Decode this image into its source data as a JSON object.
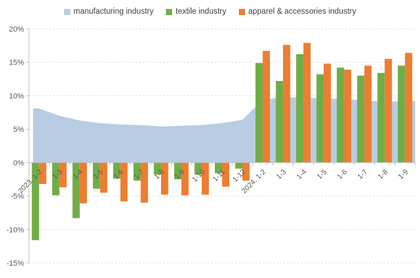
{
  "legend": {
    "items": [
      {
        "label": "manufacturing industry",
        "color": "#b8cce4"
      },
      {
        "label": "textile industry",
        "color": "#70ad47"
      },
      {
        "label": "apparel & accessories industry",
        "color": "#ed7d31"
      }
    ]
  },
  "chart_data": {
    "type": "combo",
    "title": "",
    "categories": [
      "2023. 1-2",
      "1-3",
      "1-4",
      "1-5",
      "1-6",
      "1-7",
      "1-8",
      "1-9",
      "1-10",
      "1-11",
      "1-12",
      "2024. 1-2",
      "1-3",
      "1-4",
      "1-5",
      "1-6",
      "1-7",
      "1-8",
      "1-9"
    ],
    "series": [
      {
        "name": "manufacturing industry",
        "type": "area",
        "color": "#b8cce4",
        "values": [
          8.1,
          7.0,
          6.3,
          5.9,
          5.7,
          5.6,
          5.4,
          5.5,
          5.6,
          5.9,
          6.4,
          9.4,
          9.8,
          9.7,
          9.6,
          9.5,
          9.3,
          9.1,
          9.2
        ]
      },
      {
        "name": "textile industry",
        "type": "bar",
        "color": "#70ad47",
        "values": [
          -11.6,
          -4.9,
          -8.3,
          -3.9,
          -2.4,
          -2.7,
          -1.8,
          -2.5,
          -1.8,
          -1.6,
          -0.9,
          14.9,
          12.2,
          16.2,
          13.2,
          14.2,
          13.0,
          13.4,
          14.5
        ]
      },
      {
        "name": "apparel & accessories industry",
        "type": "bar",
        "color": "#ed7d31",
        "values": [
          -3.2,
          -3.7,
          -6.1,
          -4.5,
          -5.8,
          -6.0,
          -4.8,
          -4.9,
          -4.8,
          -3.6,
          -2.7,
          16.7,
          17.6,
          17.9,
          14.8,
          13.9,
          14.5,
          15.5,
          16.4
        ]
      }
    ],
    "y_axis": {
      "min": -15,
      "max": 20,
      "step": 5,
      "tick_labels": [
        "20%",
        "15%",
        "10%",
        "5%",
        "0%",
        "-5%",
        "-10%",
        "-15%"
      ],
      "format": "percent",
      "grid": "dashed"
    },
    "xlabel": "",
    "ylabel": "",
    "legend_position": "top",
    "grid_color": "#d9d9d9",
    "axis_color": "#bfbfbf",
    "label_color": "#595959"
  }
}
